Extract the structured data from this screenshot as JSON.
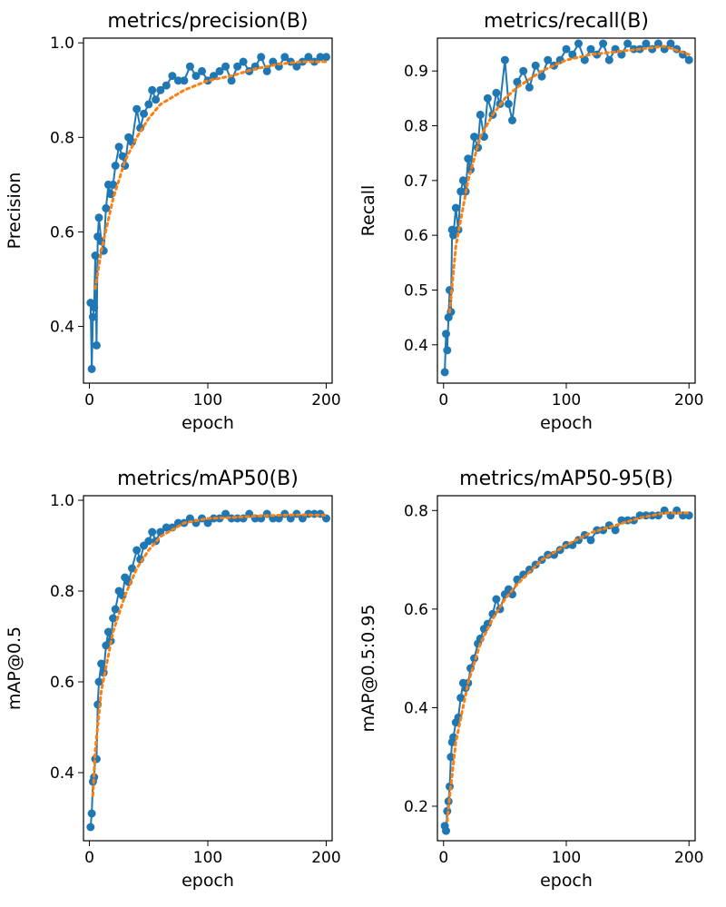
{
  "chart_data": [
    {
      "type": "line",
      "title": "metrics/precision(B)",
      "xlabel": "epoch",
      "ylabel": "Precision",
      "xlim": [
        -5,
        205
      ],
      "ylim": [
        0.28,
        1.01
      ],
      "xticks": [
        0,
        100,
        200
      ],
      "xtick_labels": [
        "0",
        "100",
        "200"
      ],
      "yticks": [
        0.4,
        0.6,
        0.8,
        1.0
      ],
      "ytick_labels": [
        "0.4",
        "0.6",
        "0.8",
        "1.0"
      ],
      "series": [
        {
          "name": "results",
          "style": "line-markers",
          "x": [
            1,
            2,
            3,
            4,
            5,
            6,
            7,
            8,
            10,
            12,
            14,
            16,
            18,
            20,
            22,
            25,
            28,
            30,
            33,
            36,
            40,
            43,
            46,
            50,
            53,
            56,
            60,
            65,
            70,
            75,
            80,
            85,
            90,
            95,
            100,
            105,
            110,
            115,
            120,
            125,
            130,
            135,
            140,
            145,
            150,
            155,
            160,
            165,
            170,
            175,
            180,
            185,
            190,
            195,
            200
          ],
          "y": [
            0.45,
            0.31,
            0.42,
            0.44,
            0.55,
            0.36,
            0.59,
            0.63,
            0.58,
            0.56,
            0.65,
            0.7,
            0.68,
            0.7,
            0.74,
            0.78,
            0.76,
            0.74,
            0.8,
            0.79,
            0.86,
            0.82,
            0.85,
            0.87,
            0.9,
            0.88,
            0.9,
            0.91,
            0.93,
            0.92,
            0.92,
            0.95,
            0.93,
            0.94,
            0.92,
            0.93,
            0.94,
            0.95,
            0.92,
            0.95,
            0.96,
            0.94,
            0.95,
            0.97,
            0.94,
            0.96,
            0.95,
            0.97,
            0.96,
            0.95,
            0.96,
            0.97,
            0.96,
            0.97,
            0.97
          ]
        },
        {
          "name": "smooth",
          "style": "dotted",
          "x": [
            5,
            10,
            20,
            30,
            40,
            50,
            60,
            80,
            100,
            120,
            140,
            160,
            180,
            200
          ],
          "y": [
            0.48,
            0.56,
            0.67,
            0.75,
            0.8,
            0.84,
            0.87,
            0.9,
            0.92,
            0.93,
            0.945,
            0.955,
            0.96,
            0.96
          ]
        }
      ]
    },
    {
      "type": "line",
      "title": "metrics/recall(B)",
      "xlabel": "epoch",
      "ylabel": "Recall",
      "xlim": [
        -5,
        205
      ],
      "ylim": [
        0.33,
        0.96
      ],
      "xticks": [
        0,
        100,
        200
      ],
      "xtick_labels": [
        "0",
        "100",
        "200"
      ],
      "yticks": [
        0.4,
        0.5,
        0.6,
        0.7,
        0.8,
        0.9
      ],
      "ytick_labels": [
        "0.4",
        "0.5",
        "0.6",
        "0.7",
        "0.8",
        "0.9"
      ],
      "series": [
        {
          "name": "results",
          "style": "line-markers",
          "x": [
            1,
            2,
            3,
            4,
            5,
            6,
            7,
            8,
            10,
            12,
            14,
            16,
            18,
            20,
            22,
            25,
            28,
            30,
            33,
            36,
            40,
            43,
            46,
            50,
            53,
            56,
            60,
            65,
            70,
            75,
            80,
            85,
            90,
            95,
            100,
            105,
            110,
            115,
            120,
            125,
            130,
            135,
            140,
            145,
            150,
            155,
            160,
            165,
            170,
            175,
            180,
            185,
            190,
            195,
            200
          ],
          "y": [
            0.35,
            0.42,
            0.39,
            0.45,
            0.5,
            0.46,
            0.61,
            0.6,
            0.65,
            0.61,
            0.68,
            0.7,
            0.68,
            0.74,
            0.72,
            0.78,
            0.76,
            0.82,
            0.78,
            0.85,
            0.82,
            0.86,
            0.84,
            0.92,
            0.84,
            0.81,
            0.88,
            0.9,
            0.87,
            0.91,
            0.89,
            0.92,
            0.91,
            0.92,
            0.94,
            0.93,
            0.95,
            0.92,
            0.94,
            0.93,
            0.95,
            0.92,
            0.94,
            0.93,
            0.95,
            0.94,
            0.94,
            0.95,
            0.94,
            0.95,
            0.94,
            0.95,
            0.94,
            0.93,
            0.92
          ]
        },
        {
          "name": "smooth",
          "style": "dotted",
          "x": [
            5,
            10,
            20,
            30,
            40,
            50,
            60,
            80,
            100,
            120,
            140,
            160,
            180,
            200
          ],
          "y": [
            0.46,
            0.58,
            0.7,
            0.78,
            0.82,
            0.85,
            0.87,
            0.9,
            0.92,
            0.93,
            0.935,
            0.94,
            0.945,
            0.93
          ]
        }
      ]
    },
    {
      "type": "line",
      "title": "metrics/mAP50(B)",
      "xlabel": "epoch",
      "ylabel": "mAP@0.5",
      "xlim": [
        -5,
        205
      ],
      "ylim": [
        0.25,
        1.01
      ],
      "xticks": [
        0,
        100,
        200
      ],
      "xtick_labels": [
        "0",
        "100",
        "200"
      ],
      "yticks": [
        0.4,
        0.6,
        0.8,
        1.0
      ],
      "ytick_labels": [
        "0.4",
        "0.6",
        "0.8",
        "1.0"
      ],
      "series": [
        {
          "name": "results",
          "style": "line-markers",
          "x": [
            1,
            2,
            3,
            4,
            5,
            6,
            7,
            8,
            10,
            12,
            14,
            16,
            18,
            20,
            22,
            25,
            28,
            30,
            33,
            36,
            40,
            43,
            46,
            50,
            53,
            56,
            60,
            65,
            70,
            75,
            80,
            85,
            90,
            95,
            100,
            105,
            110,
            115,
            120,
            125,
            130,
            135,
            140,
            145,
            150,
            155,
            160,
            165,
            170,
            175,
            180,
            185,
            190,
            195,
            200
          ],
          "y": [
            0.28,
            0.31,
            0.38,
            0.39,
            0.43,
            0.43,
            0.55,
            0.6,
            0.64,
            0.62,
            0.68,
            0.71,
            0.69,
            0.74,
            0.76,
            0.8,
            0.79,
            0.83,
            0.82,
            0.85,
            0.89,
            0.87,
            0.9,
            0.91,
            0.93,
            0.91,
            0.93,
            0.94,
            0.94,
            0.95,
            0.95,
            0.96,
            0.95,
            0.96,
            0.95,
            0.96,
            0.96,
            0.97,
            0.96,
            0.96,
            0.96,
            0.97,
            0.96,
            0.96,
            0.97,
            0.96,
            0.96,
            0.97,
            0.96,
            0.97,
            0.96,
            0.97,
            0.97,
            0.97,
            0.96
          ]
        },
        {
          "name": "smooth",
          "style": "dotted",
          "x": [
            3,
            5,
            10,
            20,
            30,
            40,
            50,
            60,
            80,
            100,
            120,
            140,
            160,
            180,
            200
          ],
          "y": [
            0.35,
            0.45,
            0.58,
            0.71,
            0.79,
            0.85,
            0.89,
            0.92,
            0.95,
            0.96,
            0.962,
            0.965,
            0.967,
            0.968,
            0.967
          ]
        }
      ]
    },
    {
      "type": "line",
      "title": "metrics/mAP50-95(B)",
      "xlabel": "epoch",
      "ylabel": "mAP@0.5:0.95",
      "xlim": [
        -5,
        205
      ],
      "ylim": [
        0.13,
        0.83
      ],
      "xticks": [
        0,
        100,
        200
      ],
      "xtick_labels": [
        "0",
        "100",
        "200"
      ],
      "yticks": [
        0.2,
        0.4,
        0.6,
        0.8
      ],
      "ytick_labels": [
        "0.2",
        "0.4",
        "0.6",
        "0.8"
      ],
      "series": [
        {
          "name": "results",
          "style": "line-markers",
          "x": [
            1,
            2,
            3,
            4,
            5,
            6,
            7,
            8,
            10,
            12,
            14,
            16,
            18,
            20,
            22,
            25,
            28,
            30,
            33,
            36,
            40,
            43,
            46,
            50,
            53,
            56,
            60,
            65,
            70,
            75,
            80,
            85,
            90,
            95,
            100,
            105,
            110,
            115,
            120,
            125,
            130,
            135,
            140,
            145,
            150,
            155,
            160,
            165,
            170,
            175,
            180,
            185,
            190,
            195,
            200
          ],
          "y": [
            0.16,
            0.15,
            0.19,
            0.21,
            0.24,
            0.3,
            0.33,
            0.34,
            0.37,
            0.38,
            0.42,
            0.45,
            0.44,
            0.45,
            0.48,
            0.5,
            0.53,
            0.54,
            0.56,
            0.57,
            0.59,
            0.62,
            0.6,
            0.63,
            0.64,
            0.63,
            0.66,
            0.67,
            0.68,
            0.69,
            0.7,
            0.71,
            0.71,
            0.72,
            0.73,
            0.73,
            0.74,
            0.75,
            0.74,
            0.76,
            0.76,
            0.77,
            0.76,
            0.78,
            0.78,
            0.78,
            0.79,
            0.79,
            0.79,
            0.79,
            0.8,
            0.79,
            0.8,
            0.79,
            0.79
          ]
        },
        {
          "name": "smooth",
          "style": "dotted",
          "x": [
            3,
            5,
            10,
            20,
            30,
            40,
            50,
            60,
            80,
            100,
            120,
            140,
            160,
            180,
            200
          ],
          "y": [
            0.17,
            0.22,
            0.33,
            0.45,
            0.53,
            0.58,
            0.62,
            0.65,
            0.7,
            0.73,
            0.755,
            0.77,
            0.785,
            0.795,
            0.795
          ]
        }
      ]
    }
  ],
  "colors": {
    "series": "#1f77b4",
    "smooth": "#ff7f0e",
    "axes": "#000000"
  }
}
